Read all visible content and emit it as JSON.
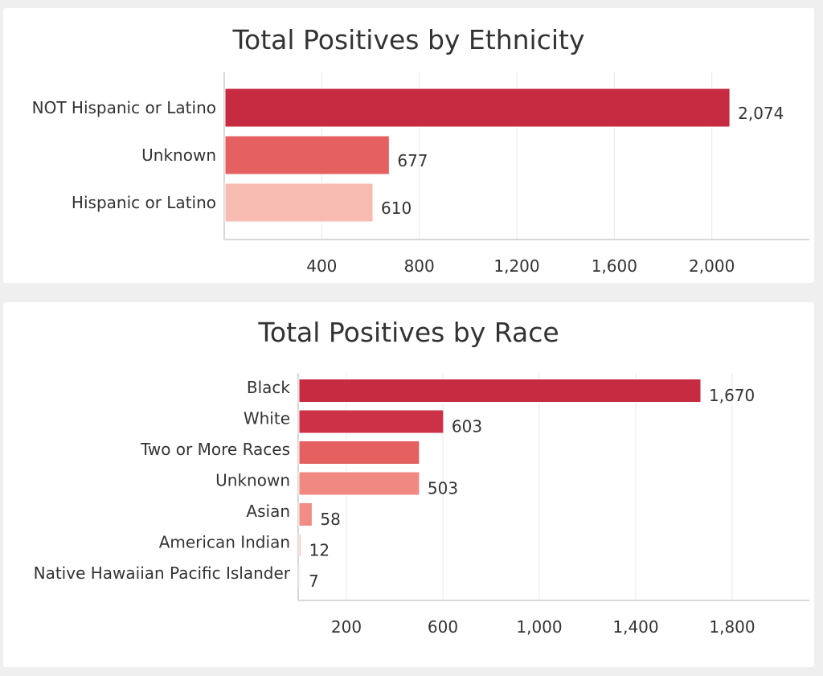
{
  "charts": {
    "ethnicity": {
      "title": "Total Positives by Ethnicity"
    },
    "race": {
      "title": "Total Positives by Race"
    }
  },
  "chart_data": [
    {
      "type": "bar",
      "orientation": "horizontal",
      "title": "Total Positives by Ethnicity",
      "categories": [
        "NOT Hispanic or Latino",
        "Unknown",
        "Hispanic or Latino"
      ],
      "values": [
        2074,
        677,
        610
      ],
      "value_labels": [
        "2,074",
        "677",
        "610"
      ],
      "bar_colors": [
        "#c62b41",
        "#e46061",
        "#f8bbb2"
      ],
      "xlim": [
        0,
        2400
      ],
      "xticks": [
        400,
        800,
        1200,
        1600,
        2000
      ],
      "xtick_labels": [
        "400",
        "800",
        "1,200",
        "1,600",
        "2,000"
      ],
      "grid": true
    },
    {
      "type": "bar",
      "orientation": "horizontal",
      "title": "Total Positives by Race",
      "categories": [
        "Black",
        "White",
        "Two or More Races",
        "Unknown",
        "Asian",
        "American Indian",
        "Native Hawaiian Pacific Islander"
      ],
      "values": [
        1670,
        603,
        503,
        503,
        58,
        12,
        7
      ],
      "value_labels": [
        "1,670",
        "603",
        "",
        "503",
        "58",
        "12",
        "7"
      ],
      "bar_colors": [
        "#c62b41",
        "#cc3148",
        "#e46061",
        "#ef8981",
        "#f28c86",
        "#f8c8c2",
        "#eeeeee"
      ],
      "xlim": [
        0,
        2120
      ],
      "xticks": [
        200,
        600,
        1000,
        1400,
        1800
      ],
      "xtick_labels": [
        "200",
        "600",
        "1,000",
        "1,400",
        "1,800"
      ],
      "grid": true
    }
  ]
}
